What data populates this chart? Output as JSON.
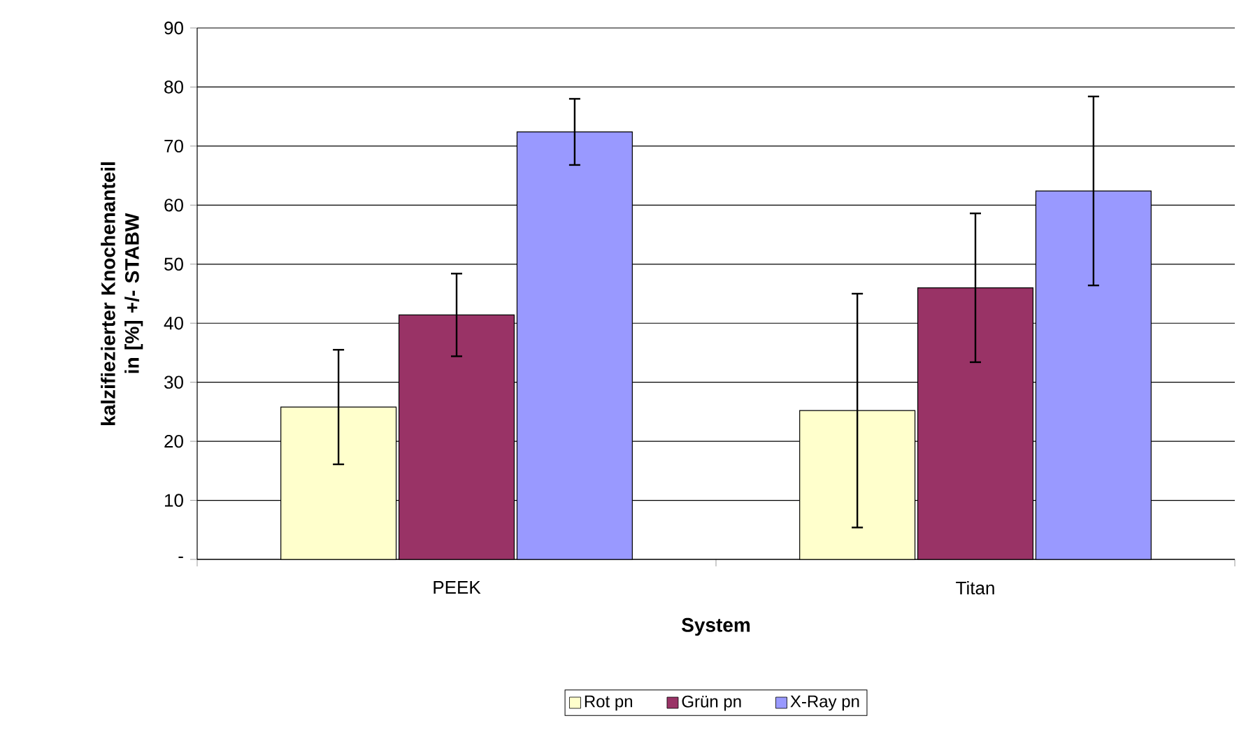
{
  "chart_data": {
    "type": "bar",
    "xlabel": "System",
    "ylabel": "kalzifiezierter Knochenanteil in [%] +/- STABW",
    "categories": [
      "PEEK",
      "Titan"
    ],
    "series": [
      {
        "name": "Rot pn",
        "color": "#ffffcc",
        "values": [
          25.8,
          25.2
        ],
        "errors": [
          9.7,
          19.8
        ]
      },
      {
        "name": "Grün pn",
        "color": "#993366",
        "values": [
          41.4,
          46.0
        ],
        "errors": [
          7.0,
          12.6
        ]
      },
      {
        "name": "X-Ray pn",
        "color": "#9999ff",
        "values": [
          72.4,
          62.4
        ],
        "errors": [
          5.6,
          16.0
        ]
      }
    ],
    "ylim": [
      0,
      90
    ],
    "yticks": [
      {
        "value": 0,
        "label": "-"
      },
      10,
      20,
      30,
      40,
      50,
      60,
      70,
      80,
      90
    ],
    "grid": "y",
    "legend": "bottom"
  }
}
